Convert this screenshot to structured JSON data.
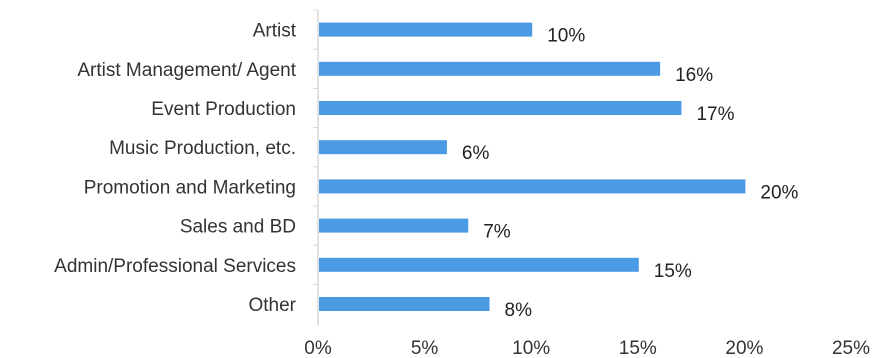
{
  "chart_data": {
    "type": "bar",
    "orientation": "horizontal",
    "categories": [
      "Artist",
      "Artist Management/ Agent",
      "Event Production",
      "Music Production, etc.",
      "Promotion and Marketing",
      "Sales and BD",
      "Admin/Professional Services",
      "Other"
    ],
    "values": [
      10,
      16,
      17,
      6,
      20,
      7,
      15,
      8
    ],
    "value_labels": [
      "10%",
      "16%",
      "17%",
      "6%",
      "20%",
      "7%",
      "15%",
      "8%"
    ],
    "xlim": [
      0,
      25
    ],
    "xticks": [
      0,
      5,
      10,
      15,
      20,
      25
    ],
    "xtick_labels": [
      "0%",
      "5%",
      "10%",
      "15%",
      "20%",
      "25%"
    ],
    "title": "",
    "xlabel": "",
    "ylabel": "",
    "grid": false,
    "legend": "none",
    "bar_color": "#4a9be4",
    "axis_color": "#d9d9d9"
  }
}
